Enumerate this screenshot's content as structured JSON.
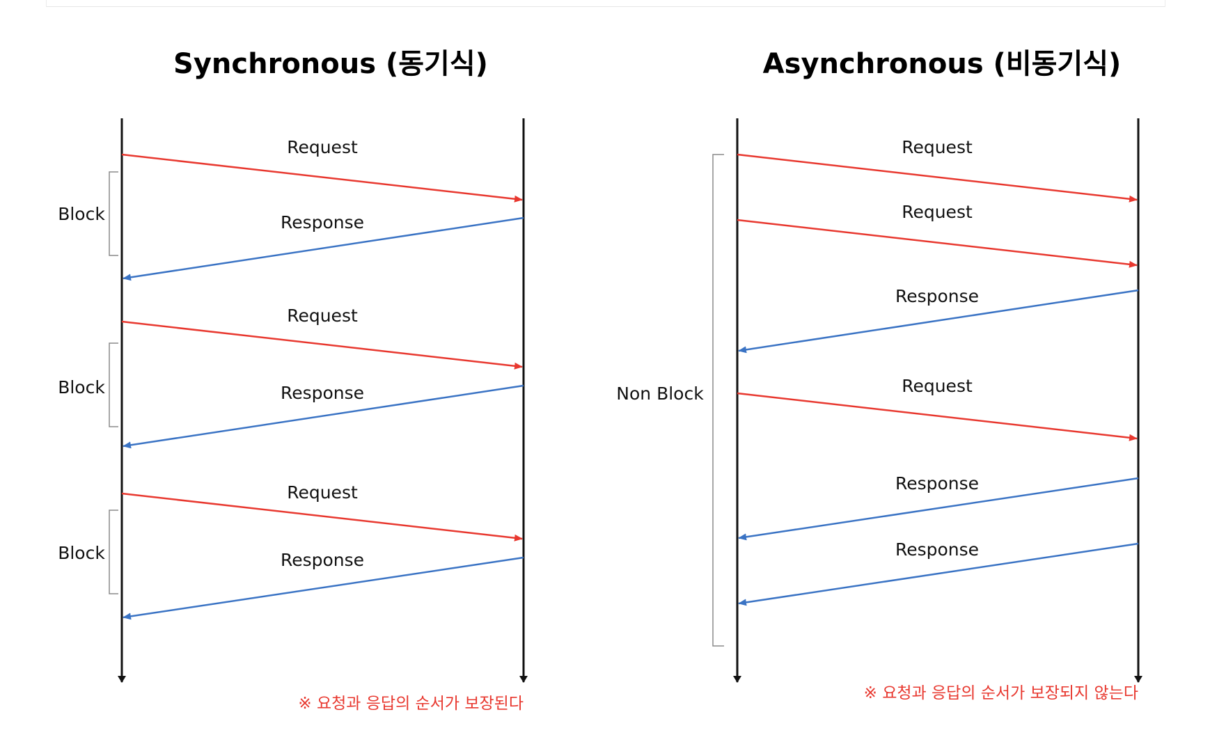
{
  "sync": {
    "title": "Synchronous (동기식)",
    "block_label": "Block",
    "messages": [
      {
        "type": "request",
        "label": "Request"
      },
      {
        "type": "response",
        "label": "Response"
      },
      {
        "type": "request",
        "label": "Request"
      },
      {
        "type": "response",
        "label": "Response"
      },
      {
        "type": "request",
        "label": "Request"
      },
      {
        "type": "response",
        "label": "Response"
      }
    ],
    "note": "※ 요청과 응답의 순서가 보장된다"
  },
  "async": {
    "title": "Asynchronous (비동기식)",
    "block_label": "Non Block",
    "messages": [
      {
        "type": "request",
        "label": "Request"
      },
      {
        "type": "request",
        "label": "Request"
      },
      {
        "type": "response",
        "label": "Response"
      },
      {
        "type": "request",
        "label": "Request"
      },
      {
        "type": "response",
        "label": "Response"
      },
      {
        "type": "response",
        "label": "Response"
      }
    ],
    "note": "※ 요청과 응답의 순서가 보장되지 않는다"
  },
  "colors": {
    "request": "#e8382f",
    "response": "#3a73c4",
    "lifeline": "#111111",
    "bracket": "#8a8a8a",
    "note": "#e8382f"
  }
}
